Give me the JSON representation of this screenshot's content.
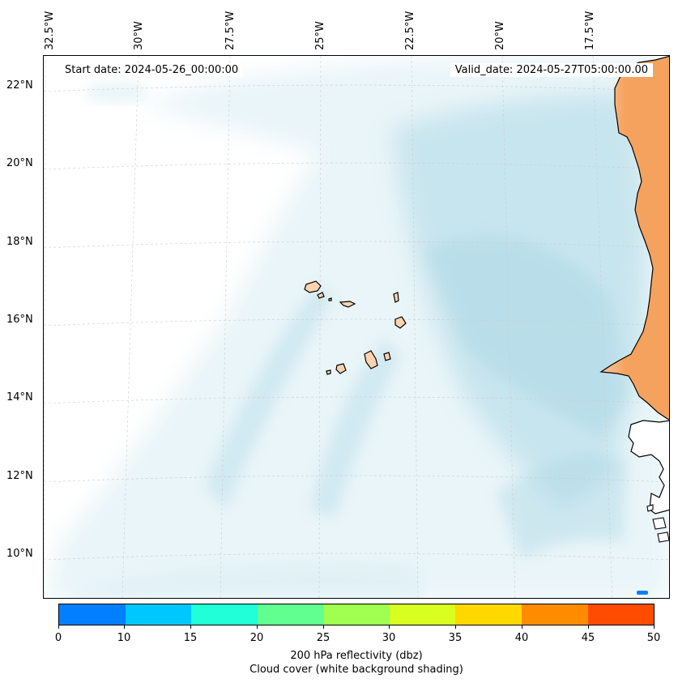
{
  "map": {
    "start_label": "Start date: 2024-05-26_00:00:00",
    "valid_label": "Valid_date: 2024-05-27T05:00:00.00",
    "lon_labels": [
      "32.5°W",
      "30°W",
      "27.5°W",
      "25°W",
      "22.5°W",
      "20°W",
      "17.5°W"
    ],
    "lat_labels": [
      "22°N",
      "20°N",
      "18°N",
      "16°N",
      "14°N",
      "12°N",
      "10°N"
    ],
    "colors": {
      "land": "#f5a25e",
      "land_light": "#f9c9a0",
      "island": "#fcd3b0",
      "cloud": "#add8e6",
      "cloud_light": "#d8edf4",
      "grid": "#cccccc"
    }
  },
  "colorbar": {
    "ticks": [
      "0",
      "10",
      "15",
      "20",
      "25",
      "30",
      "35",
      "40",
      "45",
      "50"
    ],
    "colors": [
      "#0080ff",
      "#00c8ff",
      "#20ffd8",
      "#60ff90",
      "#a0ff50",
      "#d8ff20",
      "#ffd800",
      "#ff8c00",
      "#ff4c00"
    ],
    "title": "200 hPa reflectivity (dbz)",
    "subtitle": "Cloud cover (white background shading)"
  }
}
